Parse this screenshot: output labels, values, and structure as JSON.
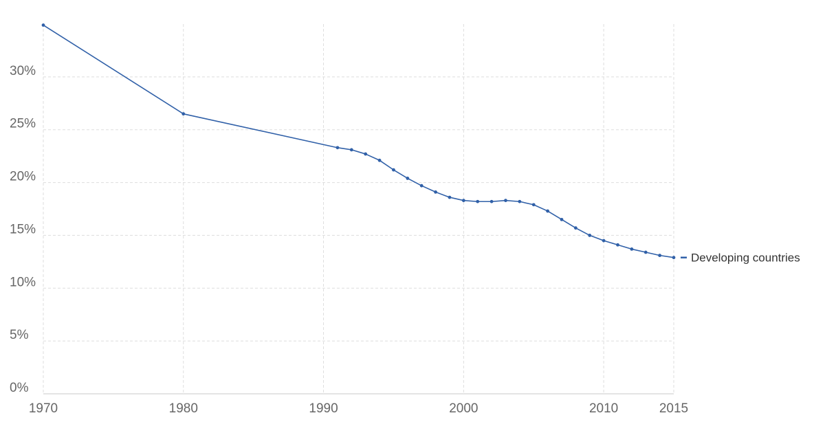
{
  "chart_data": {
    "type": "line",
    "title": "",
    "xlabel": "",
    "ylabel": "",
    "xlim": [
      1970,
      2015
    ],
    "ylim": [
      0,
      35
    ],
    "x_ticks": [
      1970,
      1980,
      1990,
      2000,
      2010,
      2015
    ],
    "x_tick_labels": [
      "1970",
      "1980",
      "1990",
      "2000",
      "2010",
      "2015"
    ],
    "y_ticks": [
      0,
      5,
      10,
      15,
      20,
      25,
      30
    ],
    "y_tick_labels": [
      "0%",
      "5%",
      "10%",
      "15%",
      "20%",
      "25%",
      "30%"
    ],
    "grid": true,
    "legend_placement": "right, at line end",
    "series": [
      {
        "name": "Developing countries",
        "color": "#3060a8",
        "x": [
          1970,
          1980,
          1991,
          1992,
          1993,
          1994,
          1995,
          1996,
          1997,
          1998,
          1999,
          2000,
          2001,
          2002,
          2003,
          2004,
          2005,
          2006,
          2007,
          2008,
          2009,
          2010,
          2011,
          2012,
          2013,
          2014,
          2015
        ],
        "y": [
          34.9,
          26.5,
          23.3,
          23.1,
          22.7,
          22.1,
          21.2,
          20.4,
          19.7,
          19.1,
          18.6,
          18.3,
          18.2,
          18.2,
          18.3,
          18.2,
          17.9,
          17.3,
          16.5,
          15.7,
          15.0,
          14.5,
          14.1,
          13.7,
          13.4,
          13.1,
          12.9
        ]
      }
    ]
  }
}
